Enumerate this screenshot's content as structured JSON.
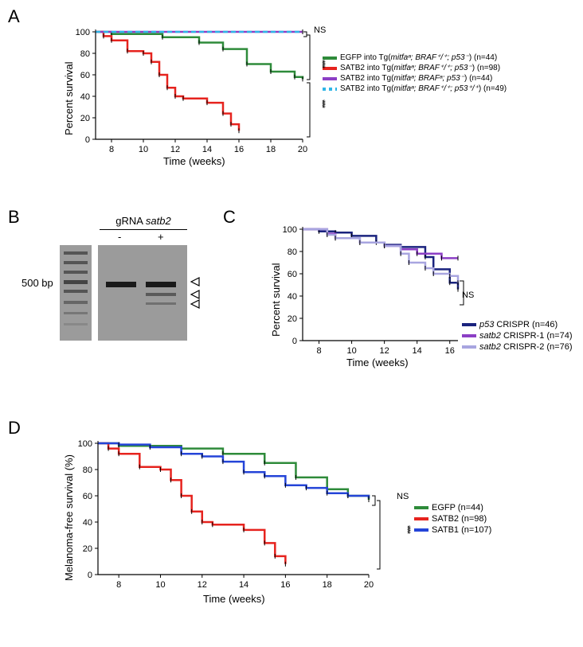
{
  "panelA": {
    "label": "A",
    "type": "survival",
    "xlabel": "Time (weeks)",
    "ylabel": "Percent survival",
    "xlim": [
      7,
      20
    ],
    "ylim": [
      0,
      100
    ],
    "xticks": [
      8,
      10,
      12,
      14,
      16,
      18,
      20
    ],
    "yticks": [
      0,
      20,
      40,
      60,
      80,
      100
    ],
    "bg": "#ffffff",
    "axis_color": "#000000",
    "series": [
      {
        "label_pre": "EGFP into Tg(",
        "label_ital": "mitfaᵃ; BRAF⁺/⁺; p53⁻",
        "label_post": ") (n=44)",
        "color": "#2e8b3a",
        "data": [
          [
            7,
            100
          ],
          [
            8,
            98
          ],
          [
            11.2,
            95
          ],
          [
            13.5,
            90
          ],
          [
            15,
            84
          ],
          [
            16.5,
            70
          ],
          [
            18,
            63
          ],
          [
            19.5,
            58
          ],
          [
            20,
            56
          ]
        ]
      },
      {
        "label_pre": "SATB2 into Tg(",
        "label_ital": "mitfaᵃ; BRAF⁺/⁺; p53⁻",
        "label_post": ") (n=98)",
        "color": "#e6231e",
        "data": [
          [
            7,
            100
          ],
          [
            7.5,
            96
          ],
          [
            8,
            92
          ],
          [
            9,
            82
          ],
          [
            10,
            80
          ],
          [
            10.5,
            72
          ],
          [
            11,
            60
          ],
          [
            11.5,
            48
          ],
          [
            12,
            40
          ],
          [
            12.5,
            38
          ],
          [
            14,
            34
          ],
          [
            15,
            24
          ],
          [
            15.5,
            14
          ],
          [
            16,
            8
          ]
        ]
      },
      {
        "label_pre": "SATB2 into Tg(",
        "label_ital": "mitfaᵃ; BRAFᵃ; p53⁻",
        "label_post": ") (n=44)",
        "color": "#8c3fc5",
        "data": [
          [
            7,
            100
          ],
          [
            20,
            100
          ]
        ]
      },
      {
        "label_pre": "SATB2 into Tg(",
        "label_ital": "mitfaᵃ; BRAF⁺/⁺; p53⁺/⁺",
        "label_post": ") (n=49)",
        "color": "#2eb5e6",
        "dash": true,
        "data": [
          [
            7,
            100
          ],
          [
            20,
            100
          ]
        ]
      }
    ],
    "sig": [
      {
        "text": "NS",
        "pos": "top"
      },
      {
        "text": "****",
        "pos": "mid"
      },
      {
        "text": "****",
        "pos": "bot"
      }
    ]
  },
  "panelB": {
    "label": "B",
    "header_prefix": "gRNA ",
    "header_ital": "satb2",
    "lane_minus": "-",
    "lane_plus": "+",
    "ladder_label": "500 bp",
    "gel_bg": "#9b9b9b",
    "band_color": "#1a1a1a",
    "ladder_color": "#777777"
  },
  "panelC": {
    "label": "C",
    "type": "survival",
    "xlabel": "Time (weeks)",
    "ylabel": "Percent survival",
    "xlim": [
      7,
      16.5
    ],
    "ylim": [
      0,
      100
    ],
    "xticks": [
      8,
      10,
      12,
      14,
      16
    ],
    "yticks": [
      0,
      20,
      40,
      60,
      80,
      100
    ],
    "series": [
      {
        "label_ital": "p53",
        "label_post": " CRISPR (n=46)",
        "color": "#1a237e",
        "data": [
          [
            7,
            100
          ],
          [
            8,
            98
          ],
          [
            9,
            97
          ],
          [
            10,
            94
          ],
          [
            11.5,
            88
          ],
          [
            12,
            86
          ],
          [
            13,
            84
          ],
          [
            14.5,
            75
          ],
          [
            15,
            64
          ],
          [
            16,
            52
          ],
          [
            16.5,
            46
          ]
        ]
      },
      {
        "label_ital": "satb2",
        "label_post": " CRISPR-1 (n=74)",
        "color": "#8c3fc5",
        "data": [
          [
            7,
            100
          ],
          [
            8.5,
            96
          ],
          [
            9,
            92
          ],
          [
            10.5,
            88
          ],
          [
            12,
            85
          ],
          [
            13,
            82
          ],
          [
            14,
            78
          ],
          [
            15.5,
            74
          ],
          [
            16.5,
            74
          ]
        ]
      },
      {
        "label_ital": "satb2",
        "label_post": " CRISPR-2 (n=76)",
        "color": "#a8a5e0",
        "data": [
          [
            7,
            100
          ],
          [
            8.5,
            95
          ],
          [
            9,
            92
          ],
          [
            10.5,
            88
          ],
          [
            12,
            85
          ],
          [
            13,
            78
          ],
          [
            13.5,
            70
          ],
          [
            14.5,
            65
          ],
          [
            15,
            60
          ],
          [
            16,
            58
          ],
          [
            16.5,
            52
          ]
        ]
      }
    ],
    "sig": [
      {
        "text": "NS"
      }
    ]
  },
  "panelD": {
    "label": "D",
    "type": "survival",
    "xlabel": "Time (weeks)",
    "ylabel": "Melanoma-free survival (%)",
    "xlim": [
      7,
      20
    ],
    "ylim": [
      0,
      100
    ],
    "xticks": [
      8,
      10,
      12,
      14,
      16,
      18,
      20
    ],
    "yticks": [
      0,
      20,
      40,
      60,
      80,
      100
    ],
    "series": [
      {
        "label": "EGFP (n=44)",
        "color": "#2e8b3a",
        "data": [
          [
            7,
            100
          ],
          [
            8,
            98
          ],
          [
            11,
            96
          ],
          [
            13,
            92
          ],
          [
            15,
            85
          ],
          [
            16.5,
            74
          ],
          [
            18,
            65
          ],
          [
            19,
            60
          ],
          [
            20,
            57
          ]
        ]
      },
      {
        "label": "SATB2 (n=98)",
        "color": "#e6231e",
        "data": [
          [
            7,
            100
          ],
          [
            7.5,
            96
          ],
          [
            8,
            92
          ],
          [
            9,
            82
          ],
          [
            10,
            80
          ],
          [
            10.5,
            72
          ],
          [
            11,
            60
          ],
          [
            11.5,
            48
          ],
          [
            12,
            40
          ],
          [
            12.5,
            38
          ],
          [
            14,
            34
          ],
          [
            15,
            24
          ],
          [
            15.5,
            14
          ],
          [
            16,
            8
          ]
        ]
      },
      {
        "label": "SATB1 (n=107)",
        "color": "#2444d8",
        "data": [
          [
            7,
            100
          ],
          [
            8,
            99
          ],
          [
            9.5,
            97
          ],
          [
            11,
            92
          ],
          [
            12,
            90
          ],
          [
            13,
            86
          ],
          [
            14,
            78
          ],
          [
            15,
            75
          ],
          [
            16,
            68
          ],
          [
            17,
            66
          ],
          [
            18,
            62
          ],
          [
            19,
            60
          ],
          [
            20,
            58
          ]
        ]
      }
    ],
    "sig": [
      {
        "text": "NS",
        "pos": "top"
      },
      {
        "text": "****",
        "pos": "bot"
      }
    ]
  }
}
